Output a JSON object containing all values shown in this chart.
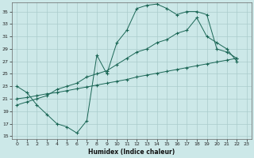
{
  "xlabel": "Humidex (Indice chaleur)",
  "bg_color": "#cce8e8",
  "grid_color": "#aacccc",
  "line_color": "#1a6655",
  "xlim": [
    -0.5,
    23.5
  ],
  "ylim": [
    14.5,
    36.5
  ],
  "yticks": [
    15,
    17,
    19,
    21,
    23,
    25,
    27,
    29,
    31,
    33,
    35
  ],
  "xticks": [
    0,
    1,
    2,
    3,
    4,
    5,
    6,
    7,
    8,
    9,
    10,
    11,
    12,
    13,
    14,
    15,
    16,
    17,
    18,
    19,
    20,
    21,
    22,
    23
  ],
  "line1_x": [
    0,
    1,
    2,
    3,
    4,
    5,
    6,
    7,
    8,
    9,
    10,
    11,
    12,
    13,
    14,
    15,
    16,
    17,
    18,
    19,
    20,
    21,
    22
  ],
  "line1_y": [
    23,
    22,
    20,
    18.5,
    17,
    16.5,
    15.5,
    17.5,
    28,
    25,
    30,
    32,
    35.5,
    36,
    36.2,
    35.5,
    34.5,
    35,
    35,
    34.5,
    29,
    28.5,
    27.5
  ],
  "line2_x": [
    0,
    1,
    2,
    3,
    4,
    5,
    6,
    7,
    8,
    9,
    10,
    11,
    12,
    13,
    14,
    15,
    16,
    17,
    18,
    19,
    20,
    21,
    22
  ],
  "line2_y": [
    21,
    21.2,
    21.5,
    21.8,
    22,
    22.3,
    22.6,
    22.9,
    23.2,
    23.5,
    23.8,
    24.1,
    24.5,
    24.8,
    25.1,
    25.4,
    25.7,
    26.0,
    26.3,
    26.6,
    26.9,
    27.2,
    27.5
  ],
  "line3_x": [
    0,
    1,
    2,
    3,
    4,
    5,
    6,
    7,
    8,
    9,
    10,
    11,
    12,
    13,
    14,
    15,
    16,
    17,
    18,
    19,
    20,
    21,
    22
  ],
  "line3_y": [
    20,
    20.5,
    21.0,
    21.5,
    22.5,
    23.0,
    23.5,
    24.5,
    25.0,
    25.5,
    26.5,
    27.5,
    28.5,
    29.0,
    30.0,
    30.5,
    31.5,
    32.0,
    34.0,
    31.0,
    30.0,
    29.0,
    27.0
  ]
}
